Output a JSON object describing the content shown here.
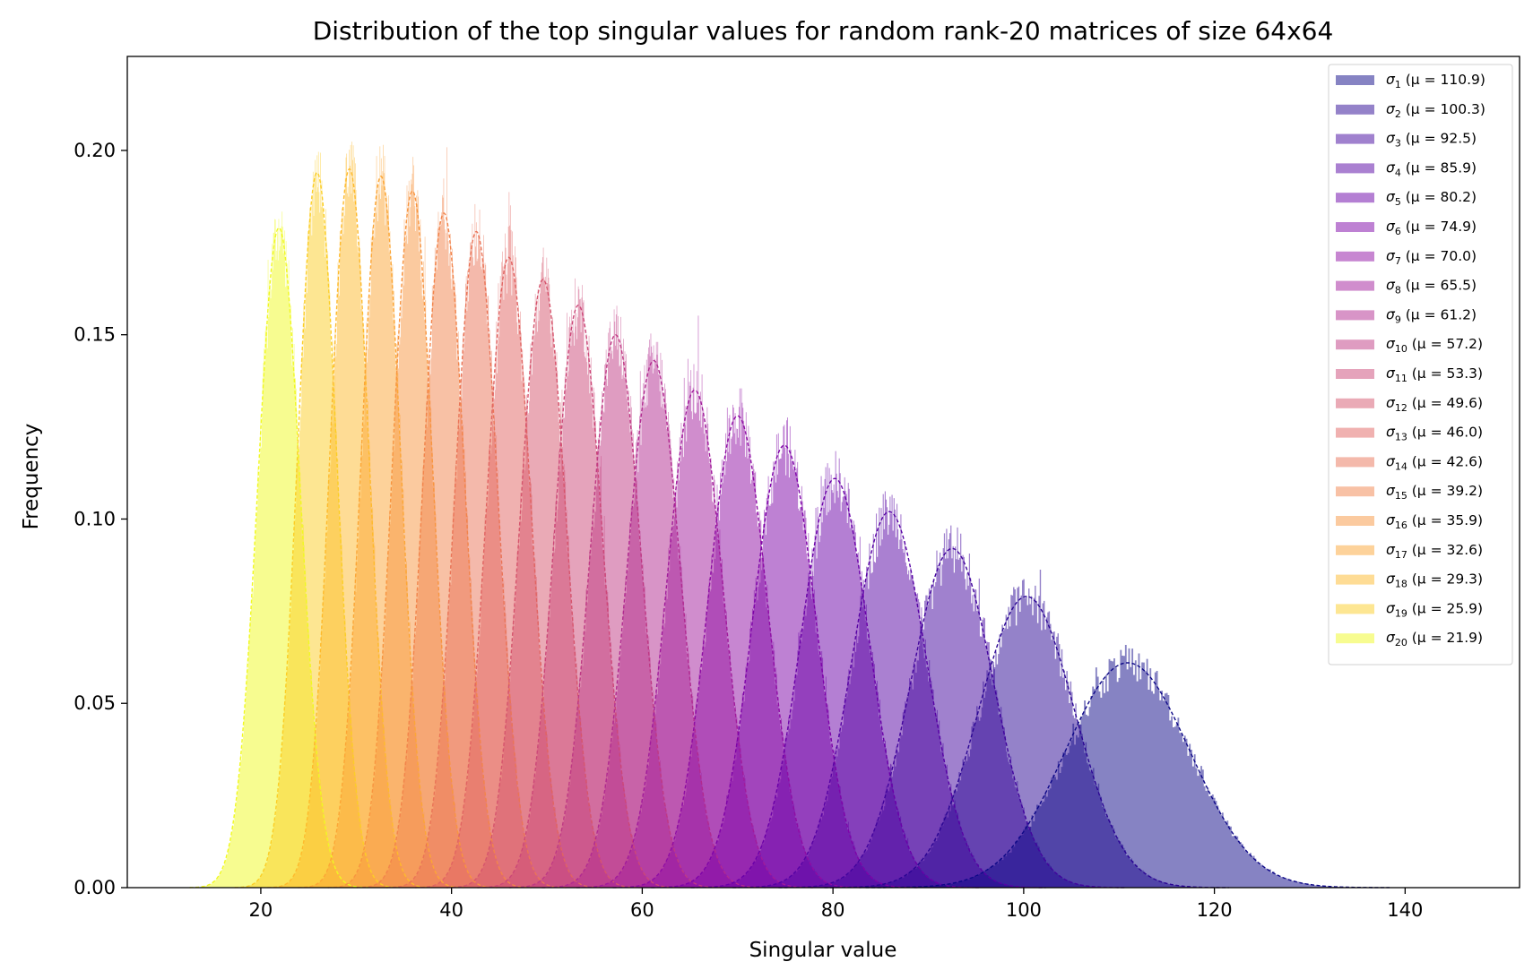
{
  "chart_data": {
    "type": "histogram",
    "title": "Distribution of the top singular values for random rank-20 matrices of size 64x64",
    "xlabel": "Singular value",
    "ylabel": "Frequency",
    "xlim": [
      6,
      152
    ],
    "ylim": [
      0,
      0.2255
    ],
    "xticks": [
      20,
      40,
      60,
      80,
      100,
      120,
      140
    ],
    "yticks": [
      0.0,
      0.05,
      0.1,
      0.15,
      0.2
    ],
    "ytick_labels": [
      "0.00",
      "0.05",
      "0.10",
      "0.15",
      "0.20"
    ],
    "grid": false,
    "legend_position": "top-right",
    "colormap": "plasma",
    "fit_curve_style": "dashed gaussian",
    "series": [
      {
        "index": 1,
        "label": "σ1 (μ = 110.9)",
        "mean": 110.9,
        "peak": 0.061,
        "color": "#0d0887"
      },
      {
        "index": 2,
        "label": "σ2 (μ = 100.3)",
        "mean": 100.3,
        "peak": 0.079,
        "color": "#2a0593"
      },
      {
        "index": 3,
        "label": "σ3 (μ = 92.5)",
        "mean": 92.5,
        "peak": 0.092,
        "color": "#41049d"
      },
      {
        "index": 4,
        "label": "σ4 (μ = 85.9)",
        "mean": 85.9,
        "peak": 0.102,
        "color": "#5602a4"
      },
      {
        "index": 5,
        "label": "σ5 (μ = 80.2)",
        "mean": 80.2,
        "peak": 0.111,
        "color": "#6a00a8"
      },
      {
        "index": 6,
        "label": "σ6 (μ = 74.9)",
        "mean": 74.9,
        "peak": 0.12,
        "color": "#7e03a8"
      },
      {
        "index": 7,
        "label": "σ7 (μ = 70.0)",
        "mean": 70.0,
        "peak": 0.128,
        "color": "#8f0da4"
      },
      {
        "index": 8,
        "label": "σ8 (μ = 65.5)",
        "mean": 65.5,
        "peak": 0.135,
        "color": "#a11b9b"
      },
      {
        "index": 9,
        "label": "σ9 (μ = 61.2)",
        "mean": 61.2,
        "peak": 0.143,
        "color": "#b12a90"
      },
      {
        "index": 10,
        "label": "σ10 (μ = 57.2)",
        "mean": 57.2,
        "peak": 0.15,
        "color": "#bf3984"
      },
      {
        "index": 11,
        "label": "σ11 (μ = 53.3)",
        "mean": 53.3,
        "peak": 0.158,
        "color": "#cc4778"
      },
      {
        "index": 12,
        "label": "σ12 (μ = 49.6)",
        "mean": 49.6,
        "peak": 0.165,
        "color": "#d6556d"
      },
      {
        "index": 13,
        "label": "σ13 (μ = 46.0)",
        "mean": 46.0,
        "peak": 0.171,
        "color": "#e16462"
      },
      {
        "index": 14,
        "label": "σ14 (μ = 42.6)",
        "mean": 42.6,
        "peak": 0.178,
        "color": "#ea7457"
      },
      {
        "index": 15,
        "label": "σ15 (μ = 39.2)",
        "mean": 39.2,
        "peak": 0.183,
        "color": "#f2844b"
      },
      {
        "index": 16,
        "label": "σ16 (μ = 35.9)",
        "mean": 35.9,
        "peak": 0.189,
        "color": "#f89540"
      },
      {
        "index": 17,
        "label": "σ17 (μ = 32.6)",
        "mean": 32.6,
        "peak": 0.193,
        "color": "#fca636"
      },
      {
        "index": 18,
        "label": "σ18 (μ = 29.3)",
        "mean": 29.3,
        "peak": 0.195,
        "color": "#feba2c"
      },
      {
        "index": 19,
        "label": "σ19 (μ = 25.9)",
        "mean": 25.9,
        "peak": 0.194,
        "color": "#fcce25"
      },
      {
        "index": 20,
        "label": "σ20 (μ = 21.9)",
        "mean": 21.9,
        "peak": 0.179,
        "color": "#f0f921"
      }
    ]
  }
}
